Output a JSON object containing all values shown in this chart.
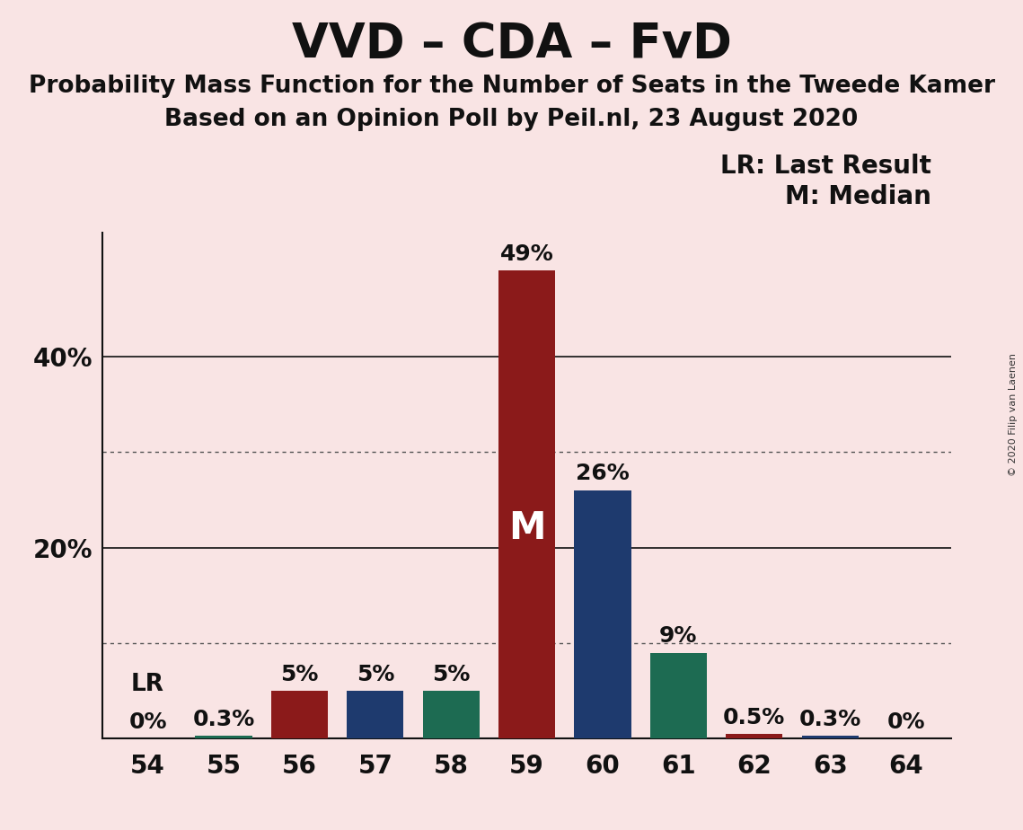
{
  "title": "VVD – CDA – FvD",
  "subtitle1": "Probability Mass Function for the Number of Seats in the Tweede Kamer",
  "subtitle2": "Based on an Opinion Poll by Peil.nl, 23 August 2020",
  "copyright": "© 2020 Filip van Laenen",
  "legend_lr": "LR: Last Result",
  "legend_m": "M: Median",
  "median_label": "M",
  "background_color": "#f9e4e4",
  "categories": [
    54,
    55,
    56,
    57,
    58,
    59,
    60,
    61,
    62,
    63,
    64
  ],
  "values": [
    0.0,
    0.3,
    5.0,
    5.0,
    5.0,
    49.0,
    26.0,
    9.0,
    0.5,
    0.3,
    0.0
  ],
  "labels": [
    "0%",
    "0.3%",
    "5%",
    "5%",
    "5%",
    "49%",
    "26%",
    "9%",
    "0.5%",
    "0.3%",
    "0%"
  ],
  "colors": [
    "#1d6b52",
    "#1d6b52",
    "#8b1a1a",
    "#1e3a6e",
    "#1d6b52",
    "#8b1a1a",
    "#1e3a6e",
    "#1d6b52",
    "#8b1a1a",
    "#1e3a6e",
    "#1d6b52"
  ],
  "lr_seat": 54,
  "median_seat": 59,
  "lr_label": "LR",
  "ylim": [
    0,
    53
  ],
  "yticks_labeled": [
    20,
    40
  ],
  "ytick_labels": [
    "20%",
    "40%"
  ],
  "hlines_dotted": [
    10,
    30
  ],
  "hlines_solid": [
    20,
    40
  ],
  "bar_width": 0.75,
  "title_fontsize": 38,
  "subtitle_fontsize": 19,
  "label_fontsize": 18,
  "tick_fontsize": 20,
  "legend_fontsize": 20,
  "median_label_fontsize": 30,
  "lr_label_fontsize": 19
}
